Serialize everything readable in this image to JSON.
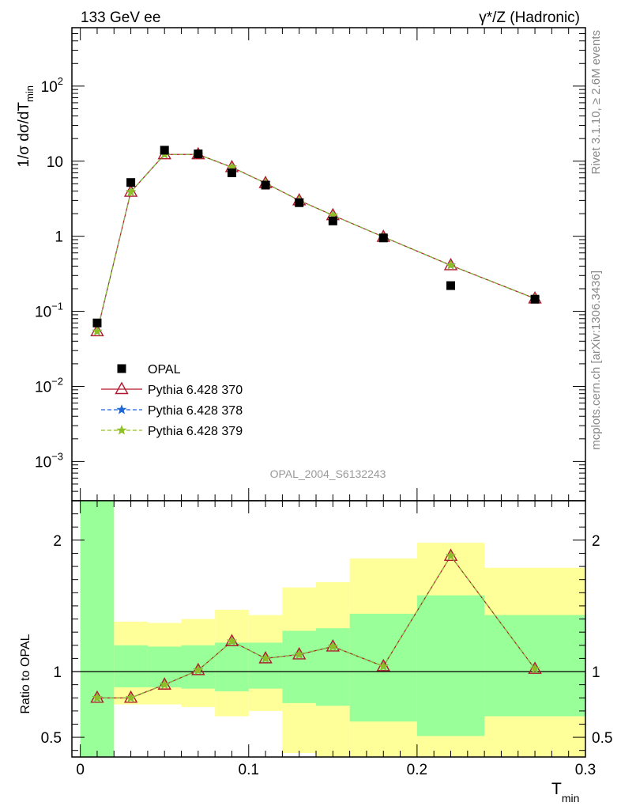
{
  "header": {
    "left": "133 GeV ee",
    "right": "γ*/Z (Hadronic)"
  },
  "side_text": {
    "rivet": "Rivet 3.1.10, ≥ 2.6M events",
    "mcplots": "mcplots.cern.ch [arXiv:1306.3436]"
  },
  "analysis_id": "OPAL_2004_S6132243",
  "chart_data": [
    {
      "type": "line",
      "ylabel": "1/σ dσ/dT_min",
      "ylabel_main": "1/σ dσ/dT",
      "ylabel_sub": "min",
      "yscale": "log",
      "ylim": [
        0.0003,
        600
      ],
      "xlim": [
        -0.005,
        0.3
      ],
      "ytick_labels": [
        {
          "v": 0.001,
          "base": "10",
          "exp": "−3"
        },
        {
          "v": 0.01,
          "base": "10",
          "exp": "−2"
        },
        {
          "v": 0.1,
          "base": "10",
          "exp": "−1"
        },
        {
          "v": 1,
          "base": "1",
          "exp": ""
        },
        {
          "v": 10,
          "base": "10",
          "exp": ""
        },
        {
          "v": 100,
          "base": "10",
          "exp": "2"
        }
      ],
      "x": [
        0.01,
        0.03,
        0.05,
        0.07,
        0.09,
        0.11,
        0.13,
        0.15,
        0.18,
        0.22,
        0.27
      ],
      "legend_position": "lower-left",
      "series": [
        {
          "name": "OPAL",
          "marker": "square",
          "color": "#000000",
          "values": [
            0.07,
            5.2,
            14.0,
            12.5,
            7.0,
            4.8,
            2.8,
            1.6,
            0.95,
            0.22,
            0.145
          ]
        },
        {
          "name": "Pythia 6.428 370",
          "marker": "triangle",
          "color": "#b2182b",
          "values": [
            0.054,
            3.9,
            12.3,
            12.3,
            8.3,
            5.1,
            3.0,
            1.9,
            0.98,
            0.41,
            0.148
          ]
        },
        {
          "name": "Pythia 6.428 378",
          "marker": "star",
          "color": "#2166d6",
          "values": [
            0.054,
            3.9,
            12.3,
            12.3,
            8.3,
            5.1,
            3.0,
            1.9,
            0.98,
            0.41,
            0.148
          ]
        },
        {
          "name": "Pythia 6.428 379",
          "marker": "star",
          "color": "#8fbf26",
          "values": [
            0.054,
            3.9,
            12.3,
            12.3,
            8.3,
            5.1,
            3.0,
            1.9,
            0.98,
            0.41,
            0.148
          ]
        }
      ]
    },
    {
      "type": "line",
      "ylabel": "Ratio to OPAL",
      "xlabel": "T_min",
      "xlabel_main": "T",
      "xlabel_sub": "min",
      "ylim": [
        0.35,
        2.3
      ],
      "xlim": [
        -0.005,
        0.3
      ],
      "yticks": [
        "0.5",
        "1",
        "2"
      ],
      "xticks": [
        "0",
        "0.1",
        "0.2",
        "0.3"
      ],
      "bins": [
        {
          "lo": 0.0,
          "hi": 0.02,
          "green": [
            0.35,
            2.3
          ],
          "yellow": [
            0.35,
            2.3
          ]
        },
        {
          "lo": 0.02,
          "hi": 0.04,
          "green": [
            0.88,
            1.2
          ],
          "yellow": [
            0.75,
            1.38
          ]
        },
        {
          "lo": 0.04,
          "hi": 0.06,
          "green": [
            0.88,
            1.19
          ],
          "yellow": [
            0.75,
            1.37
          ]
        },
        {
          "lo": 0.06,
          "hi": 0.08,
          "green": [
            0.87,
            1.2
          ],
          "yellow": [
            0.73,
            1.4
          ]
        },
        {
          "lo": 0.08,
          "hi": 0.1,
          "green": [
            0.85,
            1.22
          ],
          "yellow": [
            0.66,
            1.47
          ]
        },
        {
          "lo": 0.1,
          "hi": 0.12,
          "green": [
            0.87,
            1.22
          ],
          "yellow": [
            0.7,
            1.43
          ]
        },
        {
          "lo": 0.12,
          "hi": 0.14,
          "green": [
            0.76,
            1.31
          ],
          "yellow": [
            0.38,
            1.64
          ]
        },
        {
          "lo": 0.14,
          "hi": 0.16,
          "green": [
            0.74,
            1.33
          ],
          "yellow": [
            0.35,
            1.68
          ]
        },
        {
          "lo": 0.16,
          "hi": 0.2,
          "green": [
            0.62,
            1.44
          ],
          "yellow": [
            0.35,
            1.86
          ]
        },
        {
          "lo": 0.2,
          "hi": 0.24,
          "green": [
            0.51,
            1.58
          ],
          "yellow": [
            0.35,
            1.98
          ]
        },
        {
          "lo": 0.24,
          "hi": 0.3,
          "green": [
            0.66,
            1.43
          ],
          "yellow": [
            0.35,
            1.79
          ]
        }
      ],
      "x": [
        0.01,
        0.03,
        0.05,
        0.07,
        0.09,
        0.11,
        0.13,
        0.15,
        0.18,
        0.22,
        0.27
      ],
      "series": [
        {
          "name": "Pythia 6.428 370",
          "marker": "triangle",
          "color": "#b2182b",
          "values": [
            0.8,
            0.8,
            0.9,
            1.01,
            1.23,
            1.1,
            1.13,
            1.19,
            1.04,
            1.88,
            1.02
          ]
        },
        {
          "name": "Pythia 6.428 378",
          "marker": "star",
          "color": "#2166d6",
          "values": [
            0.8,
            0.8,
            0.9,
            1.01,
            1.23,
            1.1,
            1.13,
            1.19,
            1.04,
            1.88,
            1.02
          ]
        },
        {
          "name": "Pythia 6.428 379",
          "marker": "star",
          "color": "#8fbf26",
          "values": [
            0.8,
            0.8,
            0.9,
            1.01,
            1.23,
            1.1,
            1.13,
            1.19,
            1.04,
            1.88,
            1.02
          ]
        }
      ]
    }
  ],
  "colors": {
    "green_band": "#99ff99",
    "yellow_band": "#ffff99"
  }
}
